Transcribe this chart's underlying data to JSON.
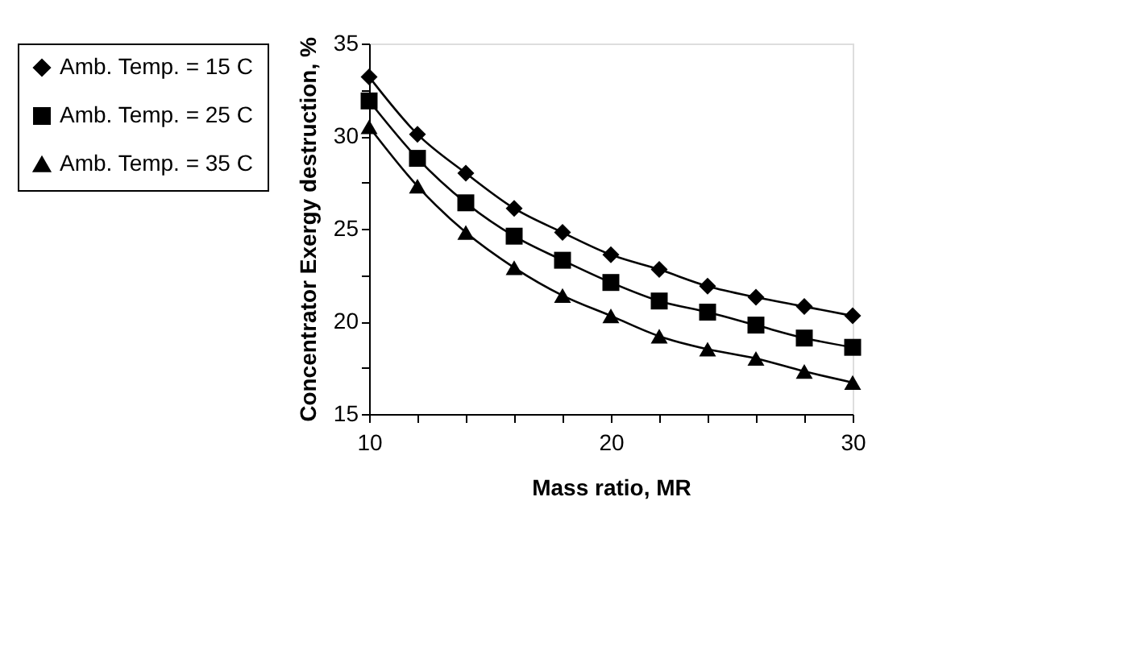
{
  "chart_data": {
    "type": "line",
    "xlabel": "Mass ratio, MR",
    "ylabel": "Concentrator Exergy destruction, %",
    "x": [
      10,
      12,
      14,
      16,
      18,
      20,
      22,
      24,
      26,
      28,
      30
    ],
    "series": [
      {
        "name": "Amb. Temp. = 15 C",
        "color": "#000000",
        "marker": "diamond",
        "values": [
          33.2,
          30.1,
          28.0,
          26.1,
          24.8,
          23.6,
          22.8,
          21.9,
          21.3,
          20.8,
          20.3
        ]
      },
      {
        "name": "Amb. Temp. = 25 C",
        "color": "#000000",
        "marker": "square",
        "values": [
          31.9,
          28.8,
          26.4,
          24.6,
          23.3,
          22.1,
          21.1,
          20.5,
          19.8,
          19.1,
          18.6
        ]
      },
      {
        "name": "Amb. Temp. = 35 C",
        "color": "#000000",
        "marker": "triangle",
        "values": [
          30.5,
          27.3,
          24.8,
          22.9,
          21.4,
          20.3,
          19.2,
          18.5,
          18.0,
          17.3,
          16.7
        ]
      }
    ],
    "xlim": [
      10,
      30
    ],
    "ylim": [
      15,
      35
    ],
    "xticks": [
      10,
      {
        "value": 12,
        "label": null
      },
      {
        "value": 14,
        "label": null
      },
      {
        "value": 16,
        "label": null
      },
      {
        "value": 18,
        "label": null
      },
      20,
      {
        "value": 22,
        "label": null
      },
      {
        "value": 24,
        "label": null
      },
      {
        "value": 26,
        "label": null
      },
      {
        "value": 28,
        "label": null
      },
      30
    ],
    "yticks": [
      15,
      {
        "value": 17.5,
        "label": null
      },
      20,
      {
        "value": 22.5,
        "label": null
      },
      25,
      {
        "value": 27.5,
        "label": null
      },
      30,
      {
        "value": 32.5,
        "label": null
      },
      35
    ],
    "grid": false,
    "legend": "left",
    "line_style": "solid"
  }
}
